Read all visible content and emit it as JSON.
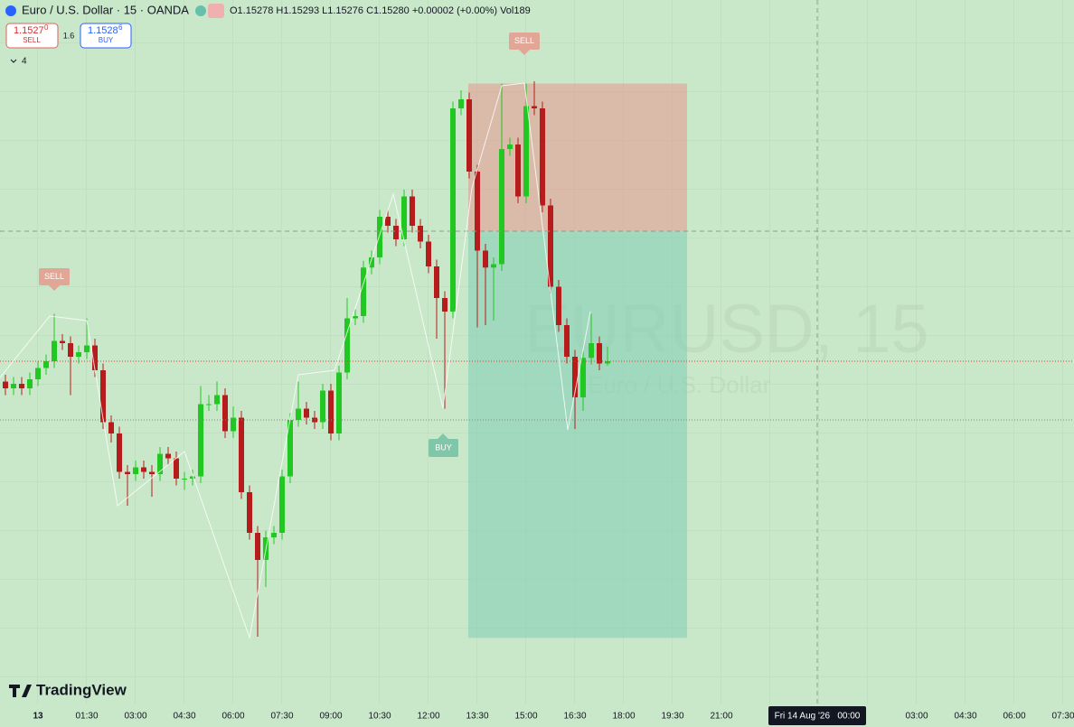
{
  "header": {
    "symbol": "Euro / U.S. Dollar · 15 · OANDA",
    "ohlc_legend": "O1.15278 H1.15293 L1.15276 C1.15280 +0.00002 (+0.00%) Vol189",
    "sell_price": "1.1527",
    "sell_price_sup": "0",
    "sell_label": "SELL",
    "spread": "1.6",
    "buy_price": "1.1528",
    "buy_price_sup": "6",
    "buy_label": "BUY",
    "indicators_count": "4"
  },
  "watermark": {
    "symbol": "EURUSD, 15",
    "description": "Euro / U.S. Dollar"
  },
  "signals": [
    {
      "label": "SELL"
    },
    {
      "label": "BUY"
    },
    {
      "label": "SELL"
    }
  ],
  "logo": "TradingView",
  "crosshair_label": "Fri 14 Aug '26   00:00",
  "chart_data": {
    "type": "candlestick",
    "up_color": "#22c822",
    "down_color": "#b71c1c",
    "ylim": [
      1.1498,
      1.156
    ],
    "categories": [
      "13",
      "01:30",
      "03:00",
      "04:30",
      "06:00",
      "07:30",
      "09:00",
      "10:30",
      "12:00",
      "13:30",
      "15:00",
      "16:30",
      "18:00",
      "19:30",
      "21:00",
      null,
      null,
      null,
      "03:00",
      "04:30",
      "06:00",
      "07:30"
    ],
    "position": {
      "stop": 1.15526,
      "entry": 1.15395,
      "target": 1.15035
    },
    "open": [
      1.15262,
      1.15256,
      1.1526,
      1.15256,
      1.15264,
      1.15274,
      1.1528,
      1.15298,
      1.15296,
      1.15284,
      1.15288,
      1.15294,
      1.15272,
      1.15226,
      1.15216,
      1.15182,
      1.1518,
      1.15186,
      1.15182,
      1.1518,
      1.15198,
      1.15194,
      1.15176,
      1.15176,
      1.15178,
      1.15242,
      1.15242,
      1.1525,
      1.15218,
      1.1523,
      1.15164,
      1.15128,
      1.15104,
      1.15124,
      1.15128,
      1.15178,
      1.15228,
      1.15238,
      1.1523,
      1.15226,
      1.15254,
      1.15216,
      1.1527,
      1.15318,
      1.1532,
      1.15363,
      1.15372,
      1.15408,
      1.154,
      1.15388,
      1.15426,
      1.154,
      1.15386,
      1.15364,
      1.15336,
      1.15324,
      1.15504,
      1.15512,
      1.15448,
      1.15378,
      1.15363,
      1.15366,
      1.15468,
      1.15472,
      1.15426,
      1.15506,
      1.15504,
      1.15418,
      1.15346,
      1.15312,
      1.15284,
      1.15248,
      1.15283,
      1.15296,
      1.15278
    ],
    "high": [
      1.15268,
      1.15266,
      1.15266,
      1.1527,
      1.1528,
      1.15286,
      1.15322,
      1.15304,
      1.15302,
      1.15294,
      1.15318,
      1.153,
      1.15278,
      1.15232,
      1.15222,
      1.15188,
      1.15192,
      1.15192,
      1.15188,
      1.15204,
      1.15204,
      1.152,
      1.15182,
      1.15184,
      1.15258,
      1.1525,
      1.15262,
      1.15256,
      1.1524,
      1.15236,
      1.1517,
      1.15134,
      1.1513,
      1.15134,
      1.15184,
      1.15234,
      1.15262,
      1.15244,
      1.15236,
      1.1526,
      1.1526,
      1.15276,
      1.15336,
      1.15326,
      1.15369,
      1.15378,
      1.15414,
      1.15414,
      1.15406,
      1.15432,
      1.15432,
      1.15406,
      1.15392,
      1.1537,
      1.15342,
      1.1551,
      1.1552,
      1.15518,
      1.15454,
      1.15384,
      1.15372,
      1.15526,
      1.15478,
      1.15478,
      1.15526,
      1.15528,
      1.1551,
      1.15424,
      1.15352,
      1.15318,
      1.1529,
      1.15289,
      1.15322,
      1.15302,
      1.15293
    ],
    "low": [
      1.1525,
      1.1525,
      1.1525,
      1.1525,
      1.15258,
      1.15268,
      1.15274,
      1.1529,
      1.1525,
      1.15278,
      1.15282,
      1.15266,
      1.1522,
      1.15208,
      1.15176,
      1.15152,
      1.15174,
      1.15176,
      1.1516,
      1.15174,
      1.15188,
      1.1517,
      1.15166,
      1.1517,
      1.15172,
      1.15236,
      1.15236,
      1.15212,
      1.15212,
      1.15158,
      1.15122,
      1.15036,
      1.1508,
      1.15118,
      1.15122,
      1.15172,
      1.15222,
      1.15224,
      1.1522,
      1.1522,
      1.1521,
      1.1521,
      1.15264,
      1.15312,
      1.15314,
      1.15357,
      1.15366,
      1.15394,
      1.15382,
      1.15382,
      1.15394,
      1.1538,
      1.15358,
      1.153,
      1.15238,
      1.15318,
      1.15498,
      1.15442,
      1.1531,
      1.15312,
      1.15316,
      1.1536,
      1.15462,
      1.1542,
      1.1542,
      1.15498,
      1.15412,
      1.1534,
      1.15306,
      1.15278,
      1.1522,
      1.15236,
      1.15277,
      1.15272,
      1.15276
    ],
    "close": [
      1.15256,
      1.1526,
      1.15256,
      1.15264,
      1.15274,
      1.1528,
      1.15298,
      1.15296,
      1.15284,
      1.15288,
      1.15294,
      1.15272,
      1.15226,
      1.15216,
      1.15182,
      1.1518,
      1.15186,
      1.15182,
      1.1518,
      1.15198,
      1.15194,
      1.15176,
      1.15176,
      1.15178,
      1.15242,
      1.15242,
      1.1525,
      1.15218,
      1.1523,
      1.15164,
      1.15128,
      1.15104,
      1.15124,
      1.15128,
      1.15178,
      1.15228,
      1.15238,
      1.1523,
      1.15226,
      1.15254,
      1.15216,
      1.1527,
      1.15318,
      1.1532,
      1.15363,
      1.15372,
      1.15408,
      1.154,
      1.15388,
      1.15426,
      1.154,
      1.15386,
      1.15364,
      1.15336,
      1.15324,
      1.15504,
      1.15512,
      1.15448,
      1.15378,
      1.15363,
      1.15366,
      1.15468,
      1.15472,
      1.15426,
      1.15506,
      1.15504,
      1.15418,
      1.15346,
      1.15312,
      1.15284,
      1.15248,
      1.15283,
      1.15296,
      1.15278,
      1.1528
    ]
  }
}
